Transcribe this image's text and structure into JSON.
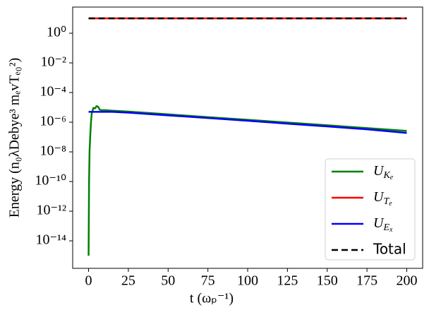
{
  "chart_data": {
    "type": "line",
    "x_label": "t (ωₚ⁻¹)",
    "y_label": "Energy (n₀λDebye³ mₑvTₑ₀²)",
    "log_y": true,
    "legend": "lower right",
    "xlim": [
      -10,
      210
    ],
    "xticks": [
      0,
      25,
      50,
      75,
      100,
      125,
      150,
      175,
      200
    ],
    "ylim": [
      1.4e-16,
      58
    ],
    "yticks": [
      {
        "value": 1,
        "label": "10⁰"
      },
      {
        "value": 0.01,
        "label": "10⁻²"
      },
      {
        "value": 0.0001,
        "label": "10⁻⁴"
      },
      {
        "value": 1e-06,
        "label": "10⁻⁶"
      },
      {
        "value": 1e-08,
        "label": "10⁻⁸"
      },
      {
        "value": 1e-10,
        "label": "10⁻¹⁰"
      },
      {
        "value": 1e-12,
        "label": "10⁻¹²"
      },
      {
        "value": 1e-14,
        "label": "10⁻¹⁴"
      }
    ],
    "series": [
      {
        "name": "UKe",
        "color": "#008000",
        "style": "solid",
        "x": [
          0,
          0.3,
          0.6,
          1,
          1.5,
          2,
          3,
          4,
          5,
          6,
          7,
          8,
          10,
          15,
          25,
          50,
          75,
          100,
          125,
          150,
          175,
          200
        ],
        "values": [
          1e-15,
          1e-10,
          1e-08,
          1e-07,
          1e-06,
          4e-06,
          9e-06,
          8.5e-06,
          1.2e-05,
          1.1e-05,
          7e-06,
          6.5e-06,
          6.5e-06,
          6e-06,
          5.2e-06,
          3.4e-06,
          2.2e-06,
          1.45e-06,
          9.5e-07,
          6.2e-07,
          4e-07,
          2.6e-07
        ]
      },
      {
        "name": "UTe",
        "color": "#ff0000",
        "style": "solid",
        "x": [
          0,
          200
        ],
        "values": [
          10,
          10
        ]
      },
      {
        "name": "UEx",
        "color": "#0000ff",
        "style": "solid",
        "x": [
          0,
          15,
          25,
          50,
          75,
          100,
          125,
          150,
          175,
          200
        ],
        "values": [
          5e-06,
          5e-06,
          4.4e-06,
          2.9e-06,
          1.9e-06,
          1.25e-06,
          8e-07,
          5.2e-07,
          3.3e-07,
          1.9e-07
        ]
      },
      {
        "name": "Total",
        "color": "#000000",
        "style": "dashed",
        "x": [
          0,
          200
        ],
        "values": [
          10,
          10
        ]
      }
    ]
  }
}
